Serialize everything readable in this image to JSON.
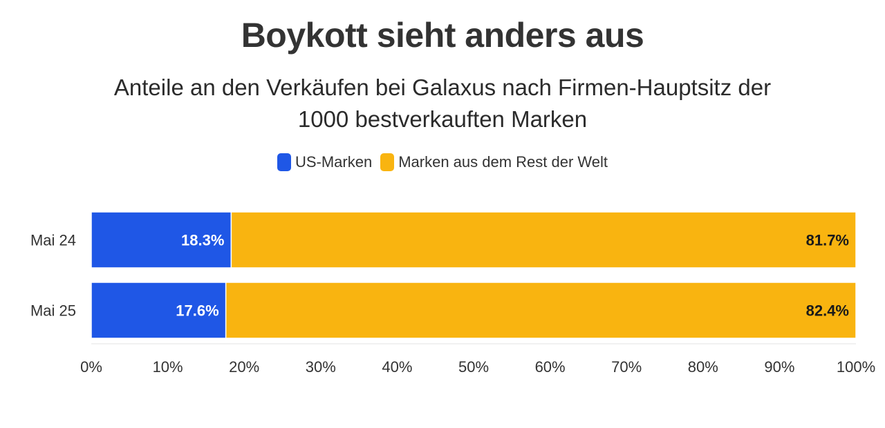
{
  "chart_data": {
    "type": "bar",
    "orientation": "horizontal",
    "stacked": true,
    "title": "Boykott sieht anders aus",
    "subtitle": "Anteile an den Verkäufen bei Galaxus nach Firmen-Hauptsitz der 1000 bestverkauften Marken",
    "categories": [
      "Mai 24",
      "Mai 25"
    ],
    "series": [
      {
        "name": "US-Marken",
        "values": [
          18.3,
          17.6
        ],
        "labels": [
          "18.3%",
          "17.6%"
        ],
        "color": "#1f57e6",
        "label_color": "#ffffff"
      },
      {
        "name": "Marken aus dem Rest der Welt",
        "values": [
          81.7,
          82.4
        ],
        "labels": [
          "81.7%",
          "82.4%"
        ],
        "color": "#f9b410",
        "label_color": "#1a1a1a"
      }
    ],
    "xlim": [
      0,
      100
    ],
    "xticks": [
      "0%",
      "10%",
      "20%",
      "30%",
      "40%",
      "50%",
      "60%",
      "70%",
      "80%",
      "90%",
      "100%"
    ],
    "xlabel": "",
    "ylabel": "",
    "legend_position": "top-center",
    "grid": false
  }
}
